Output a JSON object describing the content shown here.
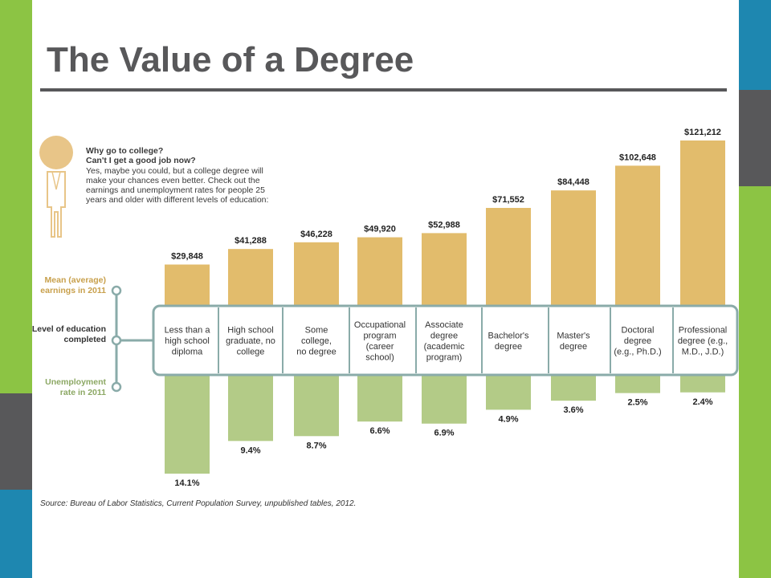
{
  "slide": {
    "title": "The Value of a Degree"
  },
  "intro": {
    "question1": "Why go to college?",
    "question2": "Can't I get a good job now?",
    "body": "Yes, maybe you could, but a college degree will make your chances even better. Check out the earnings and unemployment rates for people 25 years and older with different levels of education:"
  },
  "row_labels": {
    "earnings": "Mean (average) earnings in 2011",
    "education": "Level of education completed",
    "unemployment": "Unemployment rate in 2011"
  },
  "source": "Source: Bureau of Labor Statistics, Current Population Survey, unpublished tables, 2012.",
  "colors": {
    "earnings_bar": "#e2bc6c",
    "unemployment_bar": "#b3cb87",
    "category_box_border": "#8aaba9",
    "earnings_label": "#c8a04c",
    "unemployment_label": "#8ca864",
    "education_label": "#333333",
    "slide_green": "#8cc444",
    "slide_blue": "#1e87b0",
    "slide_gray": "#58585a"
  },
  "chart_data": {
    "type": "bar",
    "categories": [
      "Less than a high school diploma",
      "High school graduate, no college",
      "Some college, no degree",
      "Occupational program (career school)",
      "Associate degree (academic program)",
      "Bachelor's degree",
      "Master's degree",
      "Doctoral degree (e.g., Ph.D.)",
      "Professional degree (e.g., M.D., J.D.)"
    ],
    "category_lines": [
      [
        "Less than a",
        "high school",
        "diploma"
      ],
      [
        "High school",
        "graduate, no",
        "college"
      ],
      [
        "Some",
        "college,",
        "no degree"
      ],
      [
        "Occupational",
        "program",
        "(career",
        "school)"
      ],
      [
        "Associate",
        "degree",
        "(academic",
        "program)"
      ],
      [
        "Bachelor's",
        "degree"
      ],
      [
        "Master's",
        "degree"
      ],
      [
        "Doctoral",
        "degree",
        "(e.g., Ph.D.)"
      ],
      [
        "Professional",
        "degree (e.g.,",
        "M.D., J.D.)"
      ]
    ],
    "series": [
      {
        "name": "Mean (average) earnings in 2011",
        "values": [
          29848,
          41288,
          46228,
          49920,
          52988,
          71552,
          84448,
          102648,
          121212
        ],
        "labels": [
          "$29,848",
          "$41,288",
          "$46,228",
          "$49,920",
          "$52,988",
          "$71,552",
          "$84,448",
          "$102,648",
          "$121,212"
        ]
      },
      {
        "name": "Unemployment rate in 2011",
        "values": [
          14.1,
          9.4,
          8.7,
          6.6,
          6.9,
          4.9,
          3.6,
          2.5,
          2.4
        ],
        "labels": [
          "14.1%",
          "9.4%",
          "8.7%",
          "6.6%",
          "6.9%",
          "4.9%",
          "3.6%",
          "2.5%",
          "2.4%"
        ]
      }
    ]
  }
}
